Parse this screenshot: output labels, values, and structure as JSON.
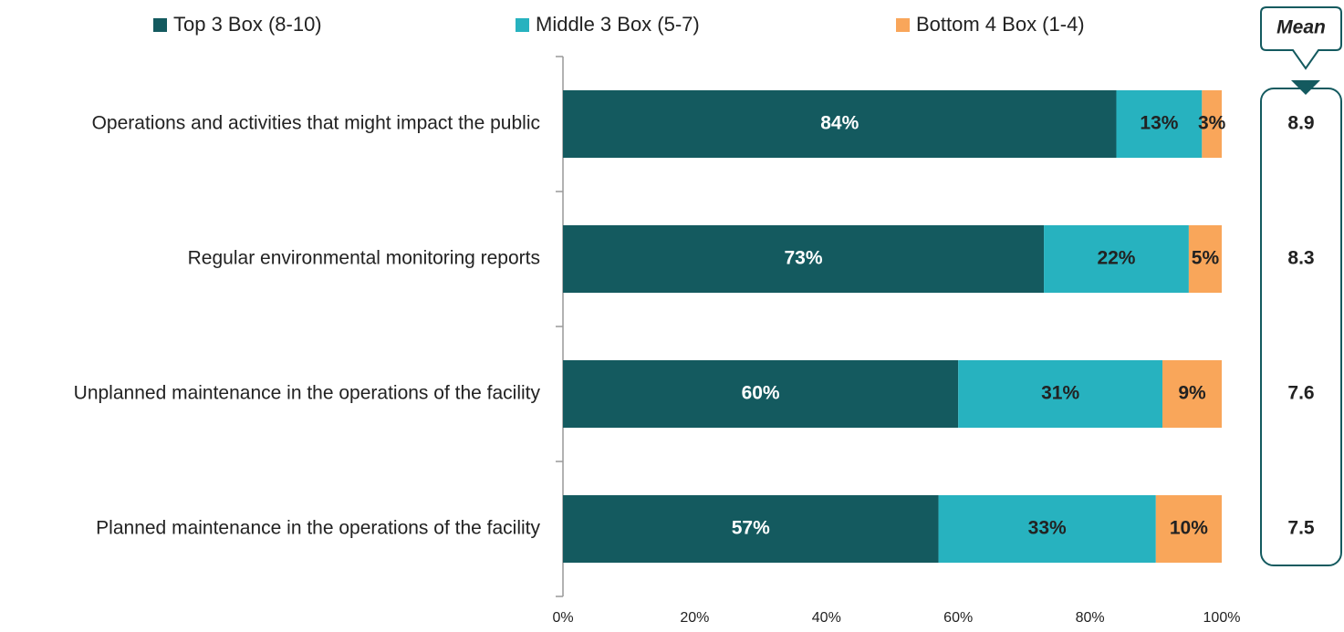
{
  "chart_data": {
    "type": "stacked_barh",
    "categories": [
      "Operations and activities that might impact the public",
      "Regular environmental monitoring reports",
      "Unplanned maintenance in the operations of the facility",
      "Planned maintenance in the operations of the facility"
    ],
    "series": [
      {
        "name": "Top 3 Box (8-10)",
        "color": "#145a5f",
        "label_color": "#ffffff",
        "values": [
          84,
          73,
          60,
          57
        ],
        "value_labels": [
          "84%",
          "73%",
          "60%",
          "57%"
        ]
      },
      {
        "name": "Middle 3 Box (5-7)",
        "color": "#27b2bf",
        "label_color": "#222222",
        "values": [
          13,
          22,
          31,
          33
        ],
        "value_labels": [
          "13%",
          "22%",
          "31%",
          "33%"
        ]
      },
      {
        "name": "Bottom 4 Box (1-4)",
        "color": "#f9a65a",
        "label_color": "#222222",
        "values": [
          3,
          5,
          9,
          10
        ],
        "value_labels": [
          "3%",
          "5%",
          "9%",
          "10%"
        ]
      }
    ],
    "xlim": [
      0,
      100
    ],
    "xticks": [
      {
        "value": 0,
        "label": "0%"
      },
      {
        "value": 20,
        "label": "20%"
      },
      {
        "value": 40,
        "label": "40%"
      },
      {
        "value": 60,
        "label": "60%"
      },
      {
        "value": 80,
        "label": "80%"
      },
      {
        "value": 100,
        "label": "100%"
      }
    ],
    "legend": "top",
    "mean": {
      "title": "Mean",
      "values": [
        8.9,
        8.3,
        7.6,
        7.5
      ]
    }
  }
}
